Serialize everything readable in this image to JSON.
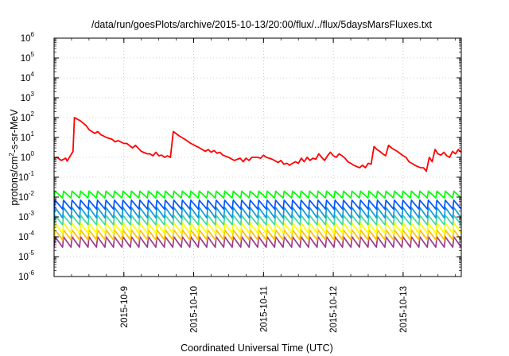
{
  "chart_data": {
    "type": "line",
    "title": "/data/run/goesPlots/archive/2015-10-13/20:00/flux/../flux/5daysMarsFluxes.txt",
    "xlabel": "Coordinated Universal Time (UTC)",
    "ylabel": {
      "pre": "protons/cm",
      "sup": "2",
      "post": "-s-sr-MeV"
    },
    "y_scale": "log",
    "ylim": [
      1e-06,
      1000000.0
    ],
    "xlim": [
      "2015-10-08T00:00",
      "2015-10-13T20:00"
    ],
    "grid": true,
    "legend": "none",
    "x_ticks": [
      "2015-10-9",
      "2015-10-10",
      "2015-10-11",
      "2015-10-12",
      "2015-10-13"
    ],
    "y_ticks": [
      {
        "base": "10",
        "exp": "-6"
      },
      {
        "base": "10",
        "exp": "-5"
      },
      {
        "base": "10",
        "exp": "-4"
      },
      {
        "base": "10",
        "exp": "-3"
      },
      {
        "base": "10",
        "exp": "-2"
      },
      {
        "base": "10",
        "exp": "-1"
      },
      {
        "base": "10",
        "exp": "0"
      },
      {
        "base": "10",
        "exp": "1"
      },
      {
        "base": "10",
        "exp": "2"
      },
      {
        "base": "10",
        "exp": "3"
      },
      {
        "base": "10",
        "exp": "4"
      },
      {
        "base": "10",
        "exp": "5"
      },
      {
        "base": "10",
        "exp": "6"
      }
    ],
    "series": [
      {
        "color": "#ff0000",
        "points": [
          [
            "2015-10-08T00:00",
            0.9
          ],
          [
            "2015-10-08T01:00",
            1.0
          ],
          [
            "2015-10-08T02:30",
            0.7
          ],
          [
            "2015-10-08T04:00",
            0.9
          ],
          [
            "2015-10-08T04:30",
            0.65
          ],
          [
            "2015-10-08T06:00",
            1.5
          ],
          [
            "2015-10-08T06:30",
            2.0
          ],
          [
            "2015-10-08T07:00",
            100
          ],
          [
            "2015-10-08T09:00",
            70
          ],
          [
            "2015-10-08T11:00",
            40
          ],
          [
            "2015-10-08T12:00",
            25
          ],
          [
            "2015-10-08T13:00",
            20
          ],
          [
            "2015-10-08T14:00",
            16
          ],
          [
            "2015-10-08T15:00",
            20
          ],
          [
            "2015-10-08T16:00",
            14
          ],
          [
            "2015-10-08T18:00",
            10
          ],
          [
            "2015-10-08T20:00",
            8
          ],
          [
            "2015-10-08T21:00",
            6
          ],
          [
            "2015-10-08T22:00",
            7
          ],
          [
            "2015-10-09T00:00",
            5
          ],
          [
            "2015-10-09T01:00",
            5
          ],
          [
            "2015-10-09T03:00",
            3
          ],
          [
            "2015-10-09T04:00",
            4
          ],
          [
            "2015-10-09T06:00",
            2
          ],
          [
            "2015-10-09T08:00",
            1.5
          ],
          [
            "2015-10-09T09:00",
            1.5
          ],
          [
            "2015-10-09T10:00",
            1.2
          ],
          [
            "2015-10-09T11:00",
            1.8
          ],
          [
            "2015-10-09T12:00",
            1.2
          ],
          [
            "2015-10-09T13:00",
            1.3
          ],
          [
            "2015-10-09T14:00",
            1.0
          ],
          [
            "2015-10-09T15:00",
            1.2
          ],
          [
            "2015-10-09T16:00",
            1.0
          ],
          [
            "2015-10-09T17:00",
            20
          ],
          [
            "2015-10-09T19:00",
            12
          ],
          [
            "2015-10-09T21:00",
            8
          ],
          [
            "2015-10-09T23:00",
            5
          ],
          [
            "2015-10-10T02:00",
            3
          ],
          [
            "2015-10-10T04:00",
            2
          ],
          [
            "2015-10-10T05:00",
            2.5
          ],
          [
            "2015-10-10T06:00",
            1.8
          ],
          [
            "2015-10-10T07:00",
            2.2
          ],
          [
            "2015-10-10T08:00",
            1.6
          ],
          [
            "2015-10-10T09:00",
            1.8
          ],
          [
            "2015-10-10T10:00",
            1.3
          ],
          [
            "2015-10-10T12:00",
            1.0
          ],
          [
            "2015-10-10T14:00",
            0.7
          ],
          [
            "2015-10-10T15:00",
            0.8
          ],
          [
            "2015-10-10T16:00",
            0.9
          ],
          [
            "2015-10-10T17:00",
            0.6
          ],
          [
            "2015-10-10T18:00",
            0.9
          ],
          [
            "2015-10-10T19:00",
            0.7
          ],
          [
            "2015-10-10T20:00",
            1.0
          ],
          [
            "2015-10-10T22:00",
            1.0
          ],
          [
            "2015-10-10T23:00",
            0.9
          ],
          [
            "2015-10-11T00:00",
            1.3
          ],
          [
            "2015-10-11T01:00",
            1.0
          ],
          [
            "2015-10-11T03:00",
            0.8
          ],
          [
            "2015-10-11T05:00",
            0.55
          ],
          [
            "2015-10-11T06:00",
            0.7
          ],
          [
            "2015-10-11T07:00",
            0.45
          ],
          [
            "2015-10-11T08:00",
            0.5
          ],
          [
            "2015-10-11T09:00",
            0.4
          ],
          [
            "2015-10-11T10:00",
            0.5
          ],
          [
            "2015-10-11T11:00",
            0.6
          ],
          [
            "2015-10-11T12:00",
            0.5
          ],
          [
            "2015-10-11T13:00",
            0.9
          ],
          [
            "2015-10-11T14:00",
            0.6
          ],
          [
            "2015-10-11T15:00",
            1.0
          ],
          [
            "2015-10-11T16:00",
            0.7
          ],
          [
            "2015-10-11T17:00",
            0.9
          ],
          [
            "2015-10-11T18:00",
            0.8
          ],
          [
            "2015-10-11T19:00",
            1.5
          ],
          [
            "2015-10-11T20:00",
            1.0
          ],
          [
            "2015-10-11T21:00",
            0.7
          ],
          [
            "2015-10-11T22:00",
            1.2
          ],
          [
            "2015-10-11T23:00",
            1.8
          ],
          [
            "2015-10-12T00:00",
            1.2
          ],
          [
            "2015-10-12T01:00",
            1.0
          ],
          [
            "2015-10-12T02:00",
            1.5
          ],
          [
            "2015-10-12T03:00",
            1.2
          ],
          [
            "2015-10-12T04:00",
            0.9
          ],
          [
            "2015-10-12T05:00",
            0.6
          ],
          [
            "2015-10-12T06:00",
            0.5
          ],
          [
            "2015-10-12T07:00",
            0.4
          ],
          [
            "2015-10-12T08:00",
            0.35
          ],
          [
            "2015-10-12T09:00",
            0.3
          ],
          [
            "2015-10-12T10:00",
            0.4
          ],
          [
            "2015-10-12T11:00",
            0.3
          ],
          [
            "2015-10-12T12:00",
            0.5
          ],
          [
            "2015-10-12T13:00",
            0.45
          ],
          [
            "2015-10-12T14:00",
            3.5
          ],
          [
            "2015-10-12T15:00",
            2.5
          ],
          [
            "2015-10-12T16:00",
            2.0
          ],
          [
            "2015-10-12T17:00",
            1.5
          ],
          [
            "2015-10-12T18:00",
            1.2
          ],
          [
            "2015-10-12T19:00",
            4.0
          ],
          [
            "2015-10-12T20:00",
            3.0
          ],
          [
            "2015-10-12T22:00",
            2.0
          ],
          [
            "2015-10-13T00:00",
            1.2
          ],
          [
            "2015-10-13T01:00",
            1.0
          ],
          [
            "2015-10-13T02:00",
            0.6
          ],
          [
            "2015-10-13T03:00",
            0.5
          ],
          [
            "2015-10-13T04:00",
            0.4
          ],
          [
            "2015-10-13T06:00",
            0.3
          ],
          [
            "2015-10-13T07:00",
            0.3
          ],
          [
            "2015-10-13T08:00",
            0.2
          ],
          [
            "2015-10-13T09:00",
            1.0
          ],
          [
            "2015-10-13T10:00",
            0.6
          ],
          [
            "2015-10-13T11:00",
            2.5
          ],
          [
            "2015-10-13T12:00",
            1.5
          ],
          [
            "2015-10-13T13:00",
            1.3
          ],
          [
            "2015-10-13T14:00",
            1.8
          ],
          [
            "2015-10-13T15:00",
            1.2
          ],
          [
            "2015-10-13T16:00",
            1.0
          ],
          [
            "2015-10-13T17:00",
            2.0
          ],
          [
            "2015-10-13T18:00",
            1.5
          ],
          [
            "2015-10-13T19:00",
            2.5
          ],
          [
            "2015-10-13T20:00",
            1.8
          ]
        ]
      },
      {
        "color": "#00ff00",
        "sawtooth": {
          "start": "2015-10-08T00:00",
          "end": "2015-10-13T20:00",
          "teeth": 48,
          "high": 0.02,
          "low": 0.009
        }
      },
      {
        "color": "#0055ff",
        "sawtooth": {
          "start": "2015-10-08T00:00",
          "end": "2015-10-13T20:00",
          "teeth": 48,
          "high": 0.007,
          "low": 0.0025
        }
      },
      {
        "color": "#1099dd",
        "sawtooth": {
          "start": "2015-10-08T00:00",
          "end": "2015-10-13T20:00",
          "teeth": 48,
          "high": 0.003,
          "low": 0.0009
        }
      },
      {
        "color": "#40d8a0",
        "sawtooth": {
          "start": "2015-10-08T00:00",
          "end": "2015-10-13T20:00",
          "teeth": 48,
          "high": 0.0012,
          "low": 0.0004
        }
      },
      {
        "color": "#ffff00",
        "sawtooth": {
          "start": "2015-10-08T00:00",
          "end": "2015-10-13T20:00",
          "teeth": 48,
          "high": 0.0005,
          "low": 0.00015
        }
      },
      {
        "color": "#ffc000",
        "sawtooth": {
          "start": "2015-10-08T00:00",
          "end": "2015-10-13T20:00",
          "teeth": 48,
          "high": 0.00022,
          "low": 7e-05
        }
      },
      {
        "color": "#9b3c8c",
        "sawtooth": {
          "start": "2015-10-08T00:00",
          "end": "2015-10-13T20:00",
          "teeth": 48,
          "high": 0.0001,
          "low": 3e-05
        }
      }
    ]
  }
}
